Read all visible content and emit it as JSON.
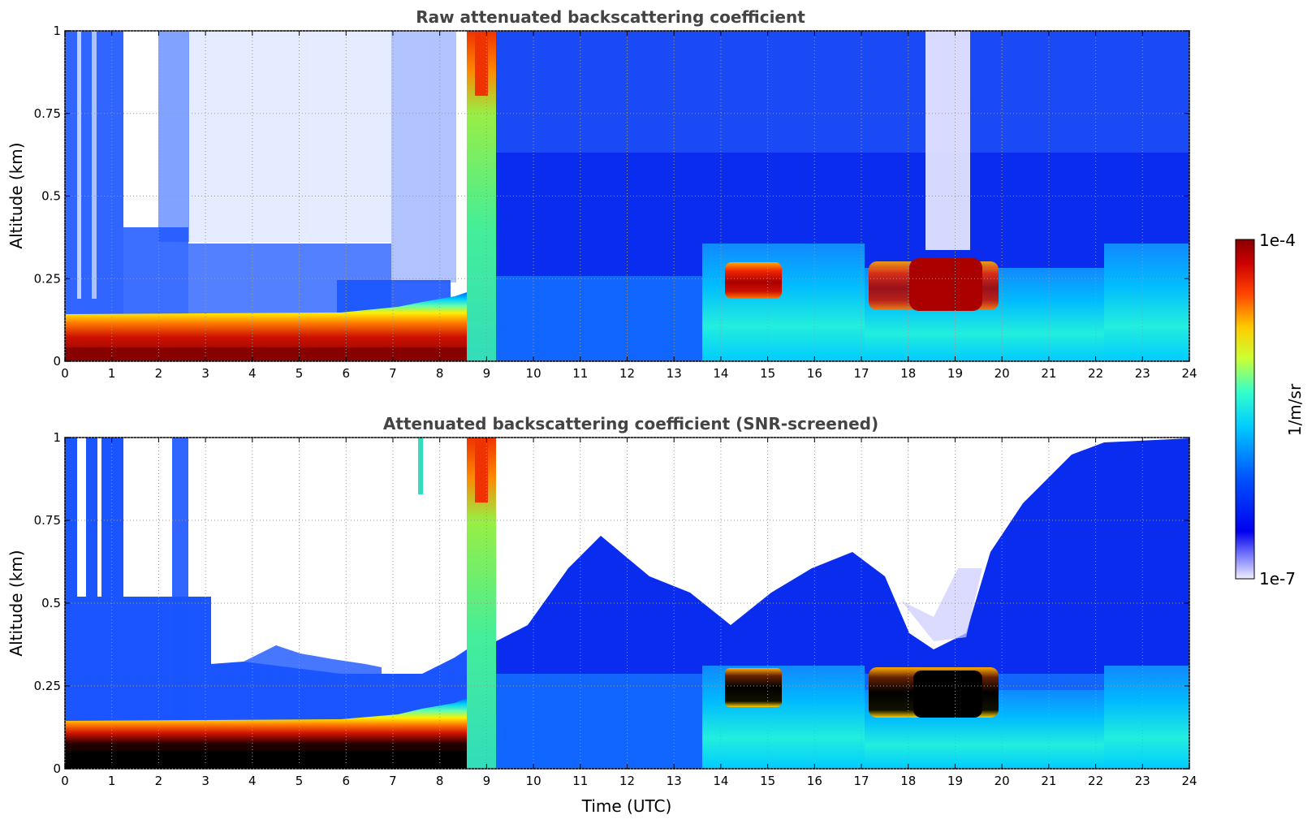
{
  "chart_data": [
    {
      "type": "heatmap",
      "title": "Raw attenuated backscattering coefficient",
      "xlabel": "",
      "ylabel": "Altitude (km)",
      "xlim": [
        0,
        24
      ],
      "ylim": [
        0,
        1
      ],
      "x_ticks": [
        "0",
        "1",
        "2",
        "3",
        "4",
        "5",
        "6",
        "7",
        "8",
        "9",
        "10",
        "11",
        "12",
        "13",
        "14",
        "15",
        "16",
        "17",
        "18",
        "19",
        "20",
        "21",
        "22",
        "23",
        "24"
      ],
      "y_ticks": [
        "0",
        "0.25",
        "0.5",
        "0.75",
        "1"
      ],
      "grid": true,
      "features": [
        {
          "name": "surface aerosol layer",
          "x_start": 0,
          "x_end": 8.5,
          "alt_top": 0.12,
          "level": "high"
        },
        {
          "name": "fog/precipitation column",
          "x_start": 8.6,
          "x_end": 8.9,
          "alt_top": 1.0,
          "level": "high"
        },
        {
          "name": "cloud",
          "x_start": 14.1,
          "x_end": 15.2,
          "alt_bottom": 0.19,
          "alt_top": 0.29,
          "level": "high"
        },
        {
          "name": "cloud",
          "x_start": 17.1,
          "x_end": 20.1,
          "alt_bottom": 0.16,
          "alt_top": 0.3,
          "level": "high"
        }
      ]
    },
    {
      "type": "heatmap",
      "title": "Attenuated backscattering coefficient (SNR-screened)",
      "xlabel": "Time (UTC)",
      "ylabel": "Altitude (km)",
      "xlim": [
        0,
        24
      ],
      "ylim": [
        0,
        1
      ],
      "x_ticks": [
        "0",
        "1",
        "2",
        "3",
        "4",
        "5",
        "6",
        "7",
        "8",
        "9",
        "10",
        "11",
        "12",
        "13",
        "14",
        "15",
        "16",
        "17",
        "18",
        "19",
        "20",
        "21",
        "22",
        "23",
        "24"
      ],
      "y_ticks": [
        "0",
        "0.25",
        "0.5",
        "0.75",
        "1"
      ],
      "grid": true,
      "features": [
        {
          "name": "surface aerosol layer",
          "x_start": 0,
          "x_end": 8.5,
          "alt_top": 0.12,
          "level": "high"
        },
        {
          "name": "fog/precipitation column",
          "x_start": 8.6,
          "x_end": 8.9,
          "alt_top": 1.0,
          "level": "high"
        },
        {
          "name": "cloud",
          "x_start": 14.1,
          "x_end": 15.2,
          "alt_bottom": 0.19,
          "alt_top": 0.29,
          "level": "saturated"
        },
        {
          "name": "cloud",
          "x_start": 17.1,
          "x_end": 20.1,
          "alt_bottom": 0.16,
          "alt_top": 0.3,
          "level": "saturated"
        }
      ]
    }
  ],
  "colorbar": {
    "label": "1/m/sr",
    "max_label": "1e-4",
    "min_label": "1e-7",
    "colors": [
      "#eeeeff",
      "#0000ee",
      "#0055ff",
      "#00ccff",
      "#33ffcc",
      "#ccff33",
      "#ffcc00",
      "#ff4400",
      "#880000"
    ]
  }
}
